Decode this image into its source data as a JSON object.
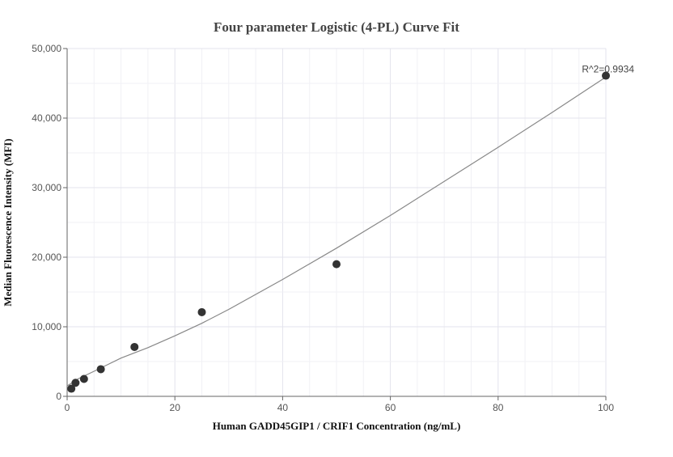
{
  "chart_data": {
    "type": "scatter",
    "title": "Four parameter Logistic (4-PL) Curve Fit",
    "xlabel": "Human GADD45GIP1 / CRIF1 Concentration (ng/mL)",
    "ylabel": "Median Fluorescence Intensity (MFI)",
    "xlim": [
      0,
      100
    ],
    "ylim": [
      0,
      50000
    ],
    "x_ticks": [
      0,
      20,
      40,
      60,
      80,
      100
    ],
    "x_tick_labels": [
      "0",
      "20",
      "40",
      "60",
      "80",
      "100"
    ],
    "y_ticks": [
      0,
      10000,
      20000,
      30000,
      40000,
      50000
    ],
    "y_tick_labels": [
      "0",
      "10,000",
      "20,000",
      "30,000",
      "40,000",
      "50,000"
    ],
    "grid": true,
    "series": [
      {
        "x": [
          0.78,
          1.56,
          3.13,
          6.25,
          12.5,
          25,
          50,
          100
        ],
        "y": [
          1100,
          1950,
          2500,
          3900,
          7100,
          12100,
          19000,
          46100
        ],
        "color": "#333333"
      }
    ],
    "fit_curve": {
      "model": "4PL",
      "x": [
        0,
        2,
        5,
        10,
        15,
        20,
        25,
        30,
        40,
        50,
        60,
        70,
        80,
        90,
        100
      ],
      "y": [
        1500,
        2500,
        3600,
        5500,
        7000,
        8700,
        10500,
        12500,
        16800,
        21300,
        26000,
        30900,
        35800,
        40800,
        45900
      ],
      "color": "#888888"
    },
    "annotation": "R^2=0.9934"
  }
}
